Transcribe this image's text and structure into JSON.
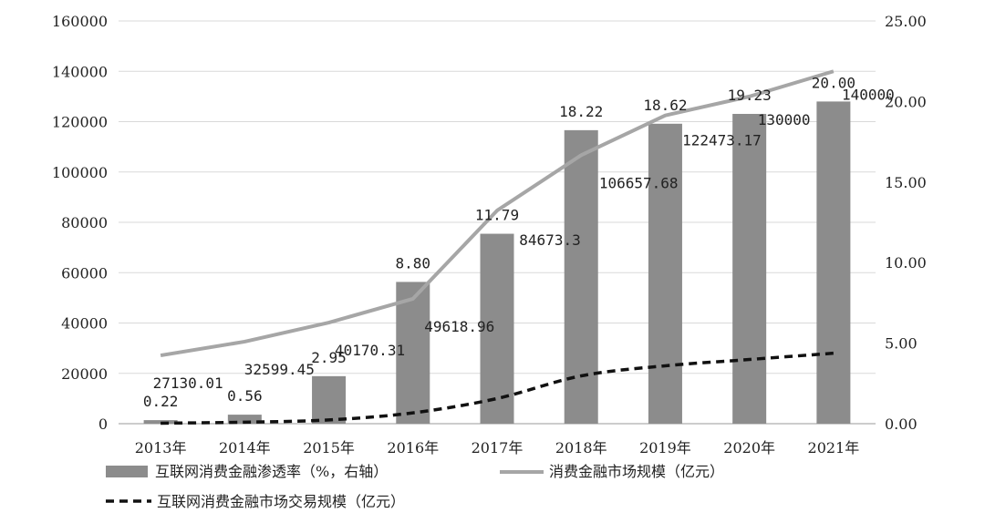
{
  "chart_data": {
    "type": "bar",
    "categories": [
      "2013年",
      "2014年",
      "2015年",
      "2016年",
      "2017年",
      "2018年",
      "2019年",
      "2020年",
      "2021年"
    ],
    "series": [
      {
        "name": "互联网消费金融渗透率（%，右轴）",
        "type": "bar",
        "axis": "right",
        "values": [
          0.22,
          0.56,
          2.95,
          8.8,
          11.79,
          18.22,
          18.62,
          19.23,
          20.0
        ],
        "labels": [
          "0.22",
          "0.56",
          "2.95",
          "8.80",
          "11.79",
          "18.22",
          "18.62",
          "19.23",
          "20.00"
        ],
        "color": "#8c8c8c"
      },
      {
        "name": "消费金融市场规模（亿元）",
        "type": "line",
        "axis": "left",
        "values": [
          27130.01,
          32599.45,
          40170.31,
          49618.96,
          84673.3,
          106657.68,
          122473.17,
          130000,
          140000
        ],
        "labels": [
          "27130.01",
          "32599.45",
          "40170.31",
          "49618.96",
          "84673.3",
          "106657.68",
          "122473.17",
          "130000",
          "140000"
        ],
        "color": "#a6a6a6"
      },
      {
        "name": "互联网消费金融市场交易规模（亿元）",
        "type": "line",
        "style": "dashed",
        "axis": "left",
        "values": [
          200,
          600,
          1500,
          4300,
          10000,
          19000,
          23000,
          25500,
          28000
        ],
        "color": "#111111"
      }
    ],
    "y_left": {
      "ylim": [
        0,
        160000
      ],
      "ticks": [
        "0",
        "20000",
        "40000",
        "60000",
        "80000",
        "100000",
        "120000",
        "140000",
        "160000"
      ]
    },
    "y_right": {
      "ylim": [
        0,
        25
      ],
      "ticks": [
        "0.00",
        "5.00",
        "10.00",
        "15.00",
        "20.00",
        "25.00"
      ]
    },
    "grid": true,
    "legend": "bottom-left"
  }
}
